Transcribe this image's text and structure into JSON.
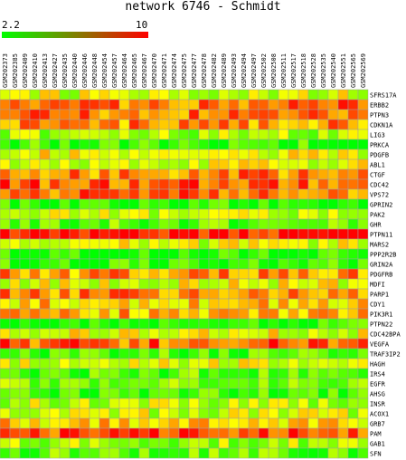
{
  "chart_data": {
    "type": "heatmap",
    "title": "network 6746 - Schmidt",
    "colorscale": {
      "min": 2.2,
      "max": 10,
      "min_label": "2.2",
      "max_label": "10",
      "low_color": "#00ff00",
      "high_color": "#ff0000"
    },
    "columns": [
      "GSM202373",
      "GSM202385",
      "GSM202409",
      "GSM202410",
      "GSM202413",
      "GSM202427",
      "GSM202435",
      "GSM202440",
      "GSM202446",
      "GSM202448",
      "GSM202454",
      "GSM202457",
      "GSM202464",
      "GSM202465",
      "GSM202467",
      "GSM202470",
      "GSM202471",
      "GSM202474",
      "GSM202475",
      "GSM202477",
      "GSM202478",
      "GSM202482",
      "GSM202489",
      "GSM202493",
      "GSM202494",
      "GSM202497",
      "GSM202502",
      "GSM202508",
      "GSM202511",
      "GSM202517",
      "GSM202518",
      "GSM202528",
      "GSM202535",
      "GSM202540",
      "GSM202551",
      "GSM202565",
      "GSM202569"
    ],
    "rows": [
      "SFRS17A",
      "ERBB2",
      "PTPN3",
      "CDKN1A",
      "LIG3",
      "PRKCA",
      "PDGFB",
      "ABL1",
      "CTGF",
      "CDC42",
      "VPS72",
      "GPRIN2",
      "PAK2",
      "GHR",
      "PTPN11",
      "MARS2",
      "PPP2R2B",
      "GRIN2A",
      "PDGFRB",
      "MDFI",
      "PARP1",
      "CDY1",
      "PIK3R1",
      "PTPN22",
      "CDC42BPA",
      "VEGFA",
      "TRAF3IP2",
      "HAGH",
      "IRS4",
      "EGFR",
      "AHSG",
      "INSR",
      "ACOX1",
      "GRB7",
      "PAM",
      "GAB1",
      "SFN"
    ],
    "row_levels": [
      5.5,
      8.2,
      8.3,
      7.8,
      4.8,
      3.2,
      6.0,
      5.8,
      8.0,
      8.6,
      8.3,
      2.6,
      5.2,
      3.8,
      9.6,
      5.6,
      2.6,
      3.0,
      7.6,
      5.8,
      7.8,
      6.8,
      7.2,
      2.7,
      5.8,
      8.5,
      3.4,
      5.5,
      3.6,
      4.0,
      3.0,
      5.2,
      5.4,
      6.8,
      9.0,
      4.8,
      3.8
    ]
  }
}
